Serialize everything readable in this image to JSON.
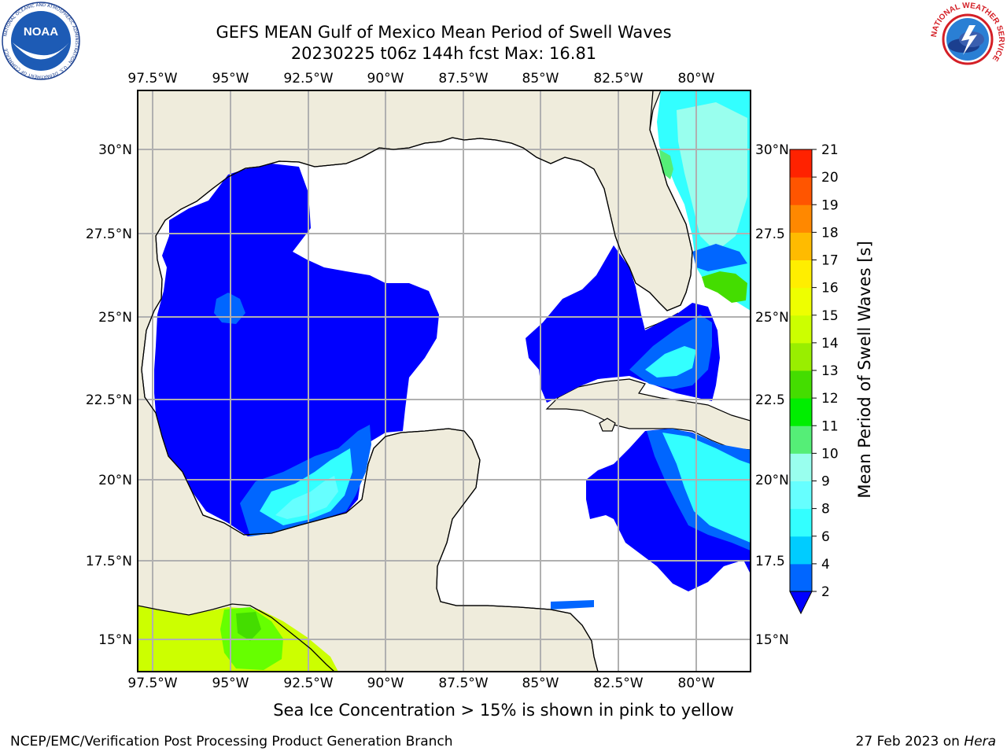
{
  "header": {
    "title_line1": "GEFS MEAN Gulf of Mexico Mean Period of Swell Waves",
    "title_line2": "20230225 t06z 144h fcst   Max: 16.81"
  },
  "logos": {
    "left": "NOAA",
    "left_ring_text": "NATIONAL OCEANIC AND ATMOSPHERIC ADMINISTRATION · U.S. DEPARTMENT OF COMMERCE",
    "right_ring_text": "NATIONAL WEATHER SERVICE"
  },
  "map": {
    "lon_labels": [
      "97.5°W",
      "95°W",
      "92.5°W",
      "90°W",
      "87.5°W",
      "85°W",
      "82.5°W",
      "80°W"
    ],
    "lat_labels_left": [
      "30°N",
      "27.5°N",
      "25°N",
      "22.5°N",
      "20°N",
      "17.5°N",
      "15°N"
    ],
    "lat_labels_right": [
      "30°N",
      "27.5",
      "25°N",
      "22.5",
      "20°N",
      "17.5",
      "15°N"
    ],
    "lon_range": [
      -98.0,
      -79.0
    ],
    "lat_range": [
      14.0,
      31.8
    ],
    "gridlines": true,
    "colors": {
      "land": "#efecdc",
      "ocean": "#ffffff",
      "grid": "#b0b0b0"
    }
  },
  "colorbar": {
    "label": "Mean Period of Swell Waves [s]",
    "ticks": [
      "2",
      "4",
      "6",
      "8",
      "9",
      "10",
      "11",
      "12",
      "13",
      "14",
      "15",
      "16",
      "17",
      "18",
      "19",
      "20",
      "21"
    ],
    "levels": [
      2,
      4,
      6,
      8,
      9,
      10,
      11,
      12,
      13,
      14,
      15,
      16,
      17,
      18,
      19,
      20,
      21
    ],
    "colors": [
      "#0066ff",
      "#00ccff",
      "#33ffff",
      "#66ffff",
      "#99ffee",
      "#55ee77",
      "#00ee00",
      "#44dd00",
      "#99ee00",
      "#ccff00",
      "#eeff00",
      "#ffee00",
      "#ffbb00",
      "#ff8800",
      "#ff5500",
      "#ff2200",
      "#ff0000"
    ],
    "under_color": "#0000ff"
  },
  "ice_note": "Sea Ice Concentration > 15% is shown in pink to yellow",
  "footer": {
    "left": "NCEP/EMC/Verification Post Processing Product Generation Branch",
    "right_prefix": "27 Feb 2023 on ",
    "right_host": "Hera"
  }
}
